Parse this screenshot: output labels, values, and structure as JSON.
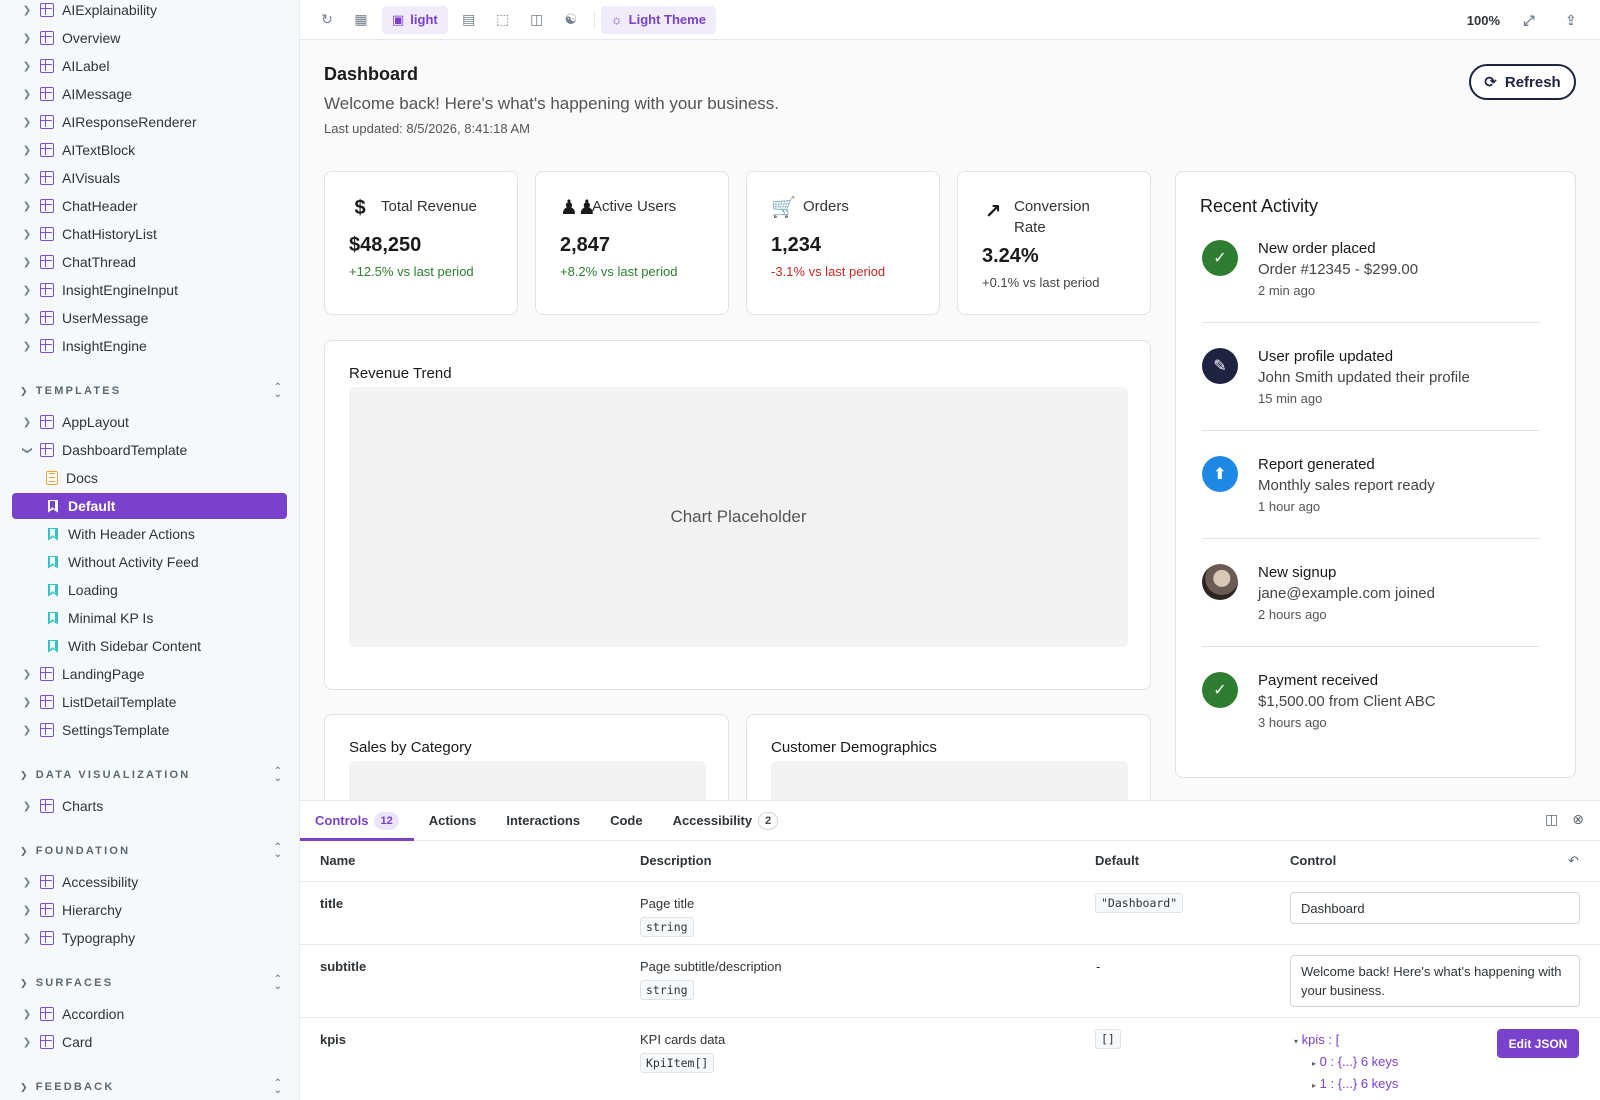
{
  "sidebar": {
    "top_items": [
      "AIExplainability",
      "Overview",
      "AILabel",
      "AIMessage",
      "AIResponseRenderer",
      "AITextBlock",
      "AIVisuals",
      "ChatHeader",
      "ChatHistoryList",
      "ChatThread",
      "InsightEngineInput",
      "UserMessage",
      "InsightEngine"
    ],
    "templates": {
      "heading": "TEMPLATES",
      "app_layout": "AppLayout",
      "dashboard_template": "DashboardTemplate",
      "children": {
        "docs": "Docs",
        "default": "Default",
        "with_header_actions": "With Header Actions",
        "without_activity_feed": "Without Activity Feed",
        "loading": "Loading",
        "minimal_kpis": "Minimal KP Is",
        "with_sidebar_content": "With Sidebar Content"
      },
      "after": [
        "LandingPage",
        "ListDetailTemplate",
        "SettingsTemplate"
      ]
    },
    "data_visualization": {
      "heading": "DATA VISUALIZATION",
      "items": [
        "Charts"
      ]
    },
    "foundation": {
      "heading": "FOUNDATION",
      "items": [
        "Accessibility",
        "Hierarchy",
        "Typography"
      ]
    },
    "surfaces": {
      "heading": "SURFACES",
      "items": [
        "Accordion",
        "Card"
      ]
    },
    "feedback": {
      "heading": "FEEDBACK"
    }
  },
  "toolbar": {
    "background_label": "light",
    "theme_label": "Light Theme",
    "zoom": "100%"
  },
  "dashboard": {
    "title": "Dashboard",
    "subtitle": "Welcome back! Here's what's happening with your business.",
    "last_updated": "Last updated: 8/5/2026, 8:41:18 AM",
    "refresh_label": "Refresh",
    "kpis": [
      {
        "label": "Total Revenue",
        "value": "$48,250",
        "change": "+12.5% vs last period",
        "icon": "dollar-icon",
        "trend": "up"
      },
      {
        "label": "Active Users",
        "value": "2,847",
        "change": "+8.2% vs last period",
        "icon": "people-icon",
        "trend": "up"
      },
      {
        "label": "Orders",
        "value": "1,234",
        "change": "-3.1% vs last period",
        "icon": "cart-icon",
        "trend": "down"
      },
      {
        "label": "Conversion Rate",
        "value": "3.24%",
        "change": "+0.1% vs last period",
        "icon": "trending-up-icon",
        "trend": "neutral"
      }
    ],
    "revenue_trend": {
      "title": "Revenue Trend",
      "placeholder": "Chart Placeholder"
    },
    "sales_by_category": {
      "title": "Sales by Category"
    },
    "customer_demographics": {
      "title": "Customer Demographics"
    },
    "activity": {
      "title": "Recent Activity",
      "items": [
        {
          "title": "New order placed",
          "desc": "Order #12345 - $299.00",
          "time": "2 min ago",
          "icon": "check-icon",
          "color": "#2e7d32"
        },
        {
          "title": "User profile updated",
          "desc": "John Smith updated their profile",
          "time": "15 min ago",
          "icon": "pencil-icon",
          "color": "#1d2340"
        },
        {
          "title": "Report generated",
          "desc": "Monthly sales report ready",
          "time": "1 hour ago",
          "icon": "upload-icon",
          "color": "#1e88e5"
        },
        {
          "title": "New signup",
          "desc": "jane@example.com joined",
          "time": "2 hours ago",
          "icon": "user-photo",
          "color": "#6b5b55"
        },
        {
          "title": "Payment received",
          "desc": "$1,500.00 from Client ABC",
          "time": "3 hours ago",
          "icon": "check-icon",
          "color": "#2e7d32"
        }
      ]
    }
  },
  "addons": {
    "tabs": [
      {
        "label": "Controls",
        "badge": "12"
      },
      {
        "label": "Actions"
      },
      {
        "label": "Interactions"
      },
      {
        "label": "Code"
      },
      {
        "label": "Accessibility",
        "badge": "2"
      }
    ],
    "columns": {
      "name": "Name",
      "description": "Description",
      "default": "Default",
      "control": "Control"
    },
    "rows": [
      {
        "name": "title",
        "description": "Page title",
        "type": "string",
        "default": "\"Dashboard\"",
        "control": "Dashboard"
      },
      {
        "name": "subtitle",
        "description": "Page subtitle/description",
        "type": "string",
        "default": "-",
        "control": "Welcome back! Here's what's happening with your business."
      },
      {
        "name": "kpis",
        "description": "KPI cards data",
        "type": "KpiItem[]",
        "default": "[]",
        "tree_root": "kpis : [",
        "tree_0": "0 : {...} 6 keys",
        "tree_1": "1 : {...} 6 keys",
        "edit_label": "Edit JSON"
      }
    ]
  }
}
